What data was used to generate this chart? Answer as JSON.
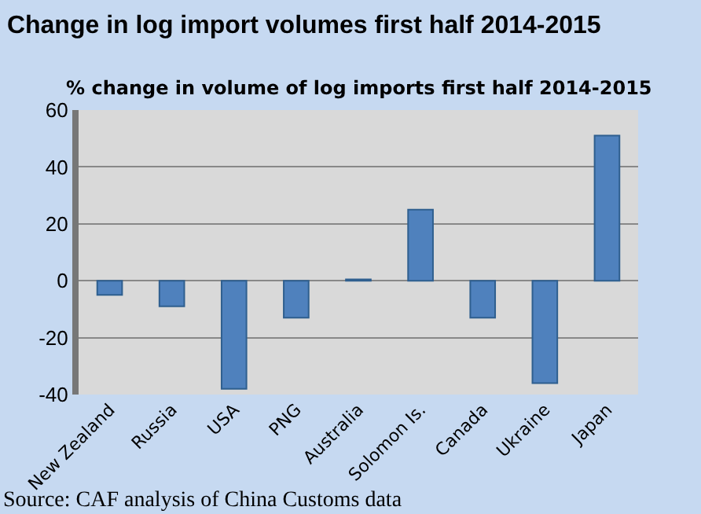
{
  "chart_data": {
    "type": "bar",
    "title": "Change in log import volumes first half 2014-2015",
    "subtitle": "% change in volume of log imports first half 2014-2015",
    "categories": [
      "New Zealand",
      "Russia",
      "USA",
      "PNG",
      "Australia",
      "Solomon Is.",
      "Canada",
      "Ukraine",
      "Japan"
    ],
    "values": [
      -5,
      -9,
      -38,
      -13,
      0.5,
      25,
      -13,
      -36,
      51
    ],
    "color": "#4f81bd",
    "ylim": [
      -40,
      60
    ],
    "yticks": [
      -40,
      -20,
      0,
      20,
      40,
      60
    ],
    "grid": "y",
    "legend": false,
    "annotations": [
      "Source: CAF analysis of China Customs data"
    ]
  }
}
